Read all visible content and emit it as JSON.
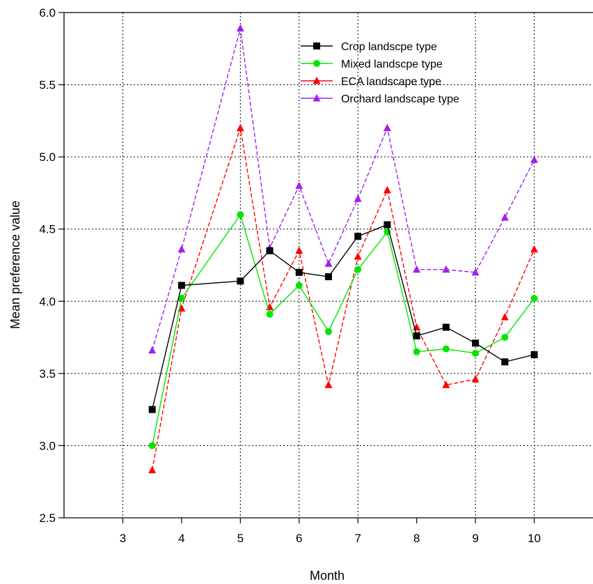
{
  "chart_data": {
    "type": "line",
    "title": "",
    "xlabel": "Month",
    "ylabel": "Mean preference value",
    "xlim": [
      2,
      11
    ],
    "ylim": [
      2.5,
      6.0
    ],
    "xticks": [
      "3",
      "4",
      "5",
      "6",
      "7",
      "8",
      "9",
      "10"
    ],
    "yticks": [
      "2.5",
      "3.0",
      "3.5",
      "4.0",
      "4.5",
      "5.0",
      "5.5",
      "6.0"
    ],
    "grid": true,
    "legend_position": "top-right",
    "x": [
      3.5,
      4,
      5,
      5.5,
      6,
      6.5,
      7,
      7.5,
      8,
      8.5,
      9,
      9.5,
      10
    ],
    "series": [
      {
        "name": "Crop landscpe type",
        "color": "#000000",
        "marker": "square",
        "values": [
          3.25,
          4.11,
          4.14,
          4.35,
          4.2,
          4.17,
          4.45,
          4.53,
          3.76,
          3.82,
          3.71,
          3.58,
          3.63
        ]
      },
      {
        "name": "Mixed landscpe type",
        "color": "#00e600",
        "marker": "circle",
        "values": [
          3.0,
          4.02,
          4.6,
          3.91,
          4.11,
          3.79,
          4.22,
          4.48,
          3.65,
          3.67,
          3.64,
          3.75,
          4.02
        ]
      },
      {
        "name": "ECA landscape type",
        "color": "#ff0000",
        "marker": "triangle",
        "values": [
          2.83,
          3.95,
          5.2,
          3.96,
          4.35,
          3.42,
          4.31,
          4.77,
          3.82,
          3.42,
          3.46,
          3.89,
          4.36
        ]
      },
      {
        "name": "Orchard landscape type",
        "color": "#a020f0",
        "marker": "triangle",
        "values": [
          3.66,
          4.36,
          5.89,
          4.37,
          4.8,
          4.26,
          4.71,
          5.2,
          4.22,
          4.22,
          4.2,
          4.58,
          4.98
        ]
      }
    ]
  }
}
